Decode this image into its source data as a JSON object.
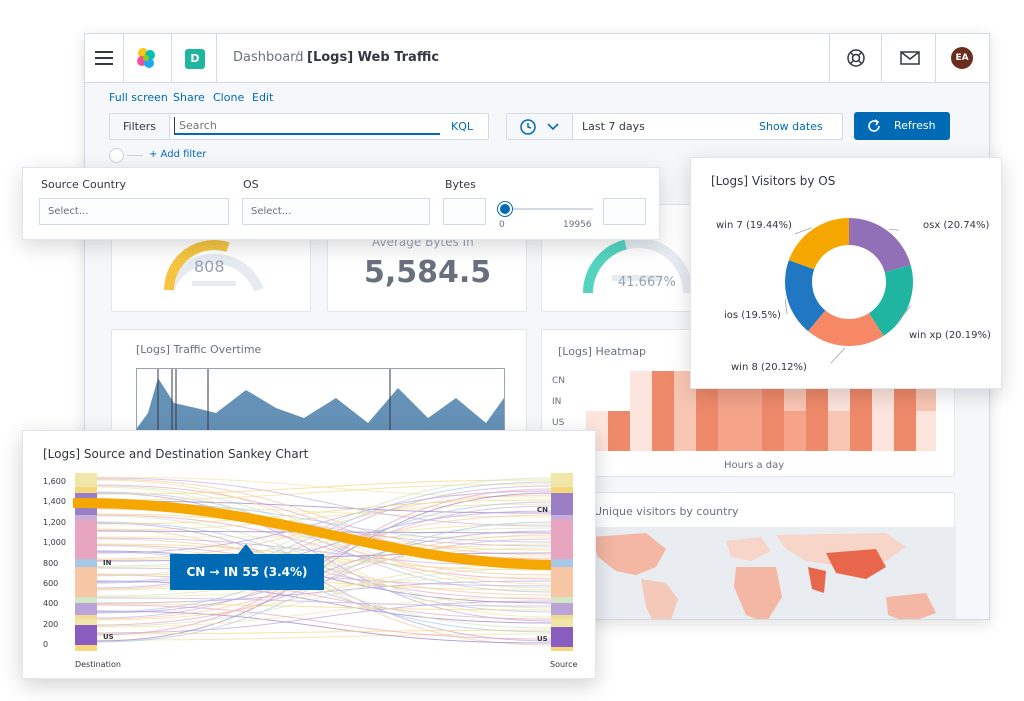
{
  "header": {
    "breadcrumb_root": "Dashboard",
    "breadcrumb_separator": "/",
    "breadcrumb_current": "[Logs] Web Traffic",
    "space_badge": "D",
    "avatar_initials": "EA",
    "icons": [
      "menu-icon",
      "elastic-logo-icon",
      "help-icon",
      "mail-icon"
    ]
  },
  "menu": {
    "full_screen": "Full screen",
    "share": "Share",
    "clone": "Clone",
    "edit": "Edit"
  },
  "query": {
    "filters_label": "Filters",
    "search_placeholder": "Search",
    "kql_label": "KQL",
    "date_range": "Last 7 days",
    "show_dates": "Show dates",
    "refresh_label": "Refresh",
    "add_filter": "+ Add filter"
  },
  "controls": {
    "source_country_label": "Source Country",
    "source_country_placeholder": "Select...",
    "os_label": "OS",
    "os_placeholder": "Select...",
    "bytes_label": "Bytes",
    "bytes_min": "0",
    "bytes_max": "19956"
  },
  "metrics": {
    "gauge_value": "808",
    "average_bytes_label": "Average Bytes In",
    "average_bytes_value": "5,584.5",
    "percent_value": "41.667%",
    "gauge_level": 0.6,
    "percent_level": 0.42
  },
  "traffic": {
    "title": "[Logs] Traffic Overtime"
  },
  "heatmap": {
    "title": "[Logs] Heatmap",
    "rows": [
      "CN",
      "IN",
      "US"
    ],
    "xlabel": "Hours a day"
  },
  "map": {
    "title": "Unique visitors by country"
  },
  "visitors_os": {
    "title": "[Logs] Visitors by OS",
    "chart_data": {
      "type": "pie",
      "donut": true,
      "categories": [
        "osx",
        "win xp",
        "win 8",
        "ios",
        "win 7"
      ],
      "labels": [
        "osx (20.74%)",
        "win xp (20.19%)",
        "win 8 (20.12%)",
        "ios (19.5%)",
        "win 7 (19.44%)"
      ],
      "values": [
        20.74,
        20.19,
        20.12,
        19.5,
        19.44
      ],
      "colors": [
        "#9170b8",
        "#20b5a0",
        "#f78865",
        "#1f78c1",
        "#f5a700"
      ]
    }
  },
  "sankey": {
    "title": "[Logs] Source and Destination Sankey Chart",
    "chart_data": {
      "type": "sankey",
      "y_ticks": [
        "1,600",
        "1,400",
        "1,200",
        "1,000",
        "800",
        "600",
        "400",
        "200",
        "0"
      ],
      "ylim": [
        0,
        1600
      ],
      "left_axis_label": "Destination",
      "right_axis_label": "Source",
      "left_nodes": [
        "IN",
        "US"
      ],
      "right_nodes": [
        "CN",
        "US"
      ],
      "highlight_tooltip": "CN → IN 55 (3.4%)",
      "highlight_color": "#f5a700"
    }
  },
  "colors": {
    "accent": "#006bb4",
    "teal": "#20b5a0",
    "heat": "#e7664c",
    "yellow": "#f5a700"
  }
}
